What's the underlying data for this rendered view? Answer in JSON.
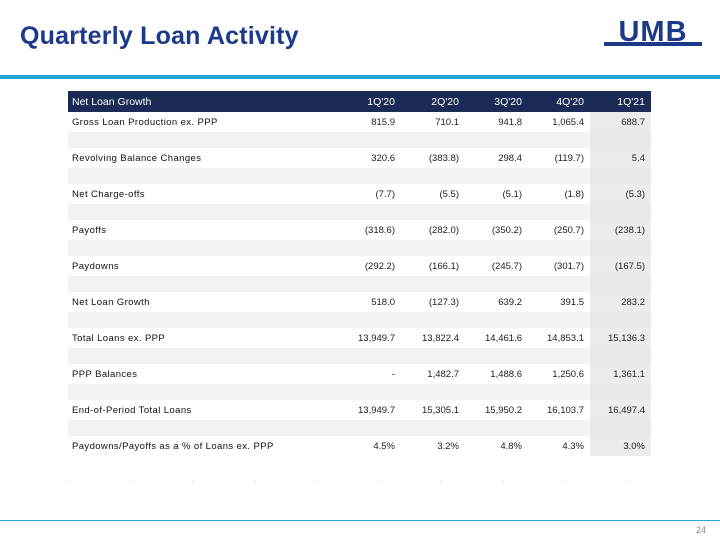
{
  "header": {
    "title": "Quarterly Loan Activity",
    "logo_text": "UMB",
    "brand_colors": {
      "navy": "#1d3a8a",
      "accent_blue": "#26a3dc",
      "table_header": "#1b2b55"
    }
  },
  "table": {
    "columns": [
      "Net Loan Growth",
      "1Q'20",
      "2Q'20",
      "3Q'20",
      "4Q'20",
      "1Q'21"
    ],
    "rows": [
      {
        "label": "Gross Loan Production ex. PPP",
        "values": [
          "815.9",
          "710.1",
          "941.8",
          "1,065.4",
          "688.7"
        ]
      },
      {
        "label": "Revolving Balance Changes",
        "values": [
          "320.6",
          "(383.8)",
          "298.4",
          "(119.7)",
          "5.4"
        ]
      },
      {
        "label": "Net Charge-offs",
        "values": [
          "(7.7)",
          "(5.5)",
          "(5.1)",
          "(1.8)",
          "(5.3)"
        ]
      },
      {
        "label": "Payoffs",
        "values": [
          "(318.6)",
          "(282.0)",
          "(350.2)",
          "(250.7)",
          "(238.1)"
        ]
      },
      {
        "label": "Paydowns",
        "values": [
          "(292.2)",
          "(166.1)",
          "(245.7)",
          "(301.7)",
          "(167.5)"
        ]
      },
      {
        "label": "Net Loan Growth",
        "values": [
          "518.0",
          "(127.3)",
          "639.2",
          "391.5",
          "283.2"
        ]
      },
      {
        "label": "Total Loans ex. PPP",
        "values": [
          "13,949.7",
          "13,822.4",
          "14,461.6",
          "14,853.1",
          "15,136.3"
        ]
      },
      {
        "label": "PPP Balances",
        "values": [
          "-",
          "1,482.7",
          "1,488.6",
          "1,250.6",
          "1,361.1"
        ]
      },
      {
        "label": "End-of-Period Total Loans",
        "values": [
          "13,949.7",
          "15,305.1",
          "15,950.2",
          "16,103.7",
          "16,497.4"
        ]
      },
      {
        "label": "Paydowns/Payoffs as a % of Loans ex. PPP",
        "values": [
          "4.5%",
          "3.2%",
          "4.8%",
          "4.3%",
          "3.0%"
        ]
      }
    ]
  },
  "footer": {
    "page_number": "24"
  }
}
